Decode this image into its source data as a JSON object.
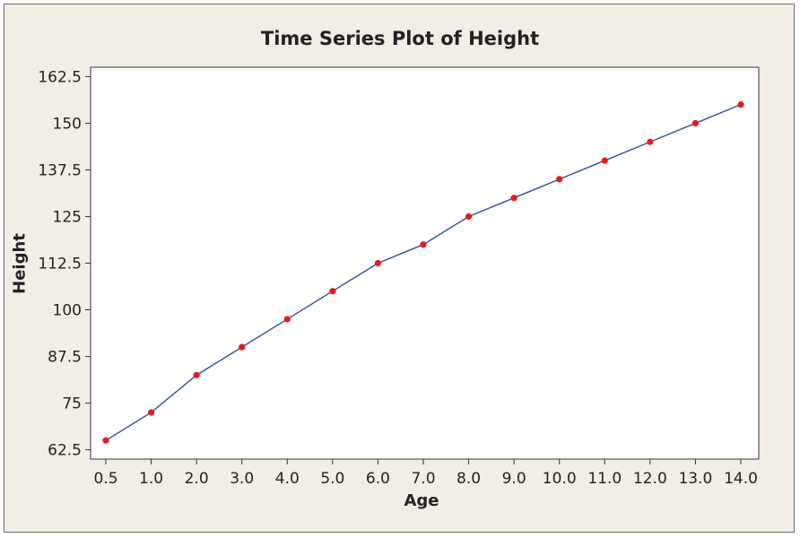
{
  "chart_data": {
    "type": "line",
    "title": "Time Series Plot of Height",
    "xlabel": "Age",
    "ylabel": "Height",
    "categories": [
      "0.5",
      "1.0",
      "2.0",
      "3.0",
      "4.0",
      "5.0",
      "6.0",
      "7.0",
      "8.0",
      "9.0",
      "10.0",
      "11.0",
      "12.0",
      "13.0",
      "14.0"
    ],
    "series": [
      {
        "values": [
          65,
          72.5,
          82.5,
          90,
          97.5,
          105,
          112.5,
          117.5,
          125,
          130,
          135,
          140,
          145,
          150,
          155
        ]
      }
    ],
    "yticks": [
      62.5,
      75,
      87.5,
      100,
      112.5,
      125,
      137.5,
      150,
      162.5
    ],
    "ytick_labels": [
      "62.5",
      "75",
      "87.5",
      "100",
      "112.5",
      "125",
      "137.5",
      "150",
      "162.5"
    ],
    "ylim": [
      60,
      165
    ],
    "grid": false,
    "line_color": "#2f4f9f",
    "marker_color": "#e8191f"
  }
}
